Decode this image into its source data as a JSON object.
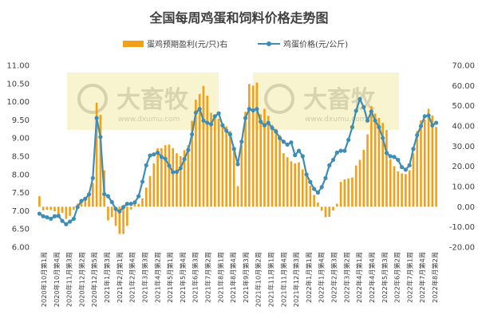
{
  "chart_data": {
    "type": "bar+line",
    "title": "全国每周鸡蛋和饲料价格走势图",
    "watermark": {
      "brand": "大畜牧",
      "url": "www.dxumu.com"
    },
    "colors": {
      "bar": "#f2a01a",
      "line": "#3d8db4",
      "marker_fill": "#3d8db4",
      "watermark_bg": "#f7f2c7"
    },
    "series": [
      {
        "name": "蛋鸡预期盈利(元/只)右",
        "type": "bar",
        "axis": "right"
      },
      {
        "name": "鸡蛋价格(元/公斤)",
        "type": "line",
        "axis": "left"
      }
    ],
    "left_axis": {
      "min": 6.0,
      "max": 11.0,
      "step": 0.5,
      "ticks": [
        "6.00",
        "6.50",
        "7.00",
        "7.50",
        "8.00",
        "8.50",
        "9.00",
        "9.50",
        "10.00",
        "10.50",
        "11.00"
      ]
    },
    "right_axis": {
      "min": -20,
      "max": 70,
      "step": 10,
      "ticks": [
        "-20.00",
        "-10.00",
        "0.00",
        "10.00",
        "20.00",
        "30.00",
        "40.00",
        "50.00",
        "60.00",
        "70.00"
      ]
    },
    "x_tick_labels": [
      "2020年10月第1周",
      "2020年10月第4周",
      "2020年11月第3周",
      "2020年12月第2周",
      "2020年12月第5周",
      "2021年1月第3周",
      "2021年2月第1周",
      "2021年2月第4周",
      "2021年3月第3周",
      "2021年4月第2周",
      "2021年5月第1周",
      "2021年5月第4周",
      "2021年6月第3周",
      "2021年7月第2周",
      "2021年8月第1周",
      "2021年8月第4周",
      "2021年9月第3周",
      "2021年10月第2周",
      "2021年11月第1周",
      "2021年11月第4周",
      "2021年12月第3周",
      "2022年1月第1周",
      "2022年1月第4周",
      "2022年2月第3周",
      "2022年3月第2周",
      "2022年4月第1周",
      "2022年4月第4周",
      "2022年5月第3周",
      "2022年6月第2周",
      "2022年7月第1周",
      "2022年7月第4周",
      "2022年8月第2周"
    ],
    "egg_price": [
      6.92,
      6.85,
      6.82,
      6.78,
      6.85,
      6.86,
      6.72,
      6.63,
      6.7,
      6.78,
      7.1,
      7.27,
      7.33,
      7.45,
      7.9,
      9.55,
      9.03,
      7.46,
      7.4,
      7.24,
      7.05,
      6.98,
      7.1,
      7.19,
      7.19,
      7.23,
      7.4,
      7.8,
      8.25,
      8.52,
      8.55,
      8.6,
      8.48,
      8.43,
      8.24,
      8.06,
      8.07,
      8.17,
      8.42,
      8.67,
      9.1,
      9.7,
      9.8,
      9.48,
      9.42,
      9.38,
      9.6,
      9.68,
      9.35,
      9.2,
      9.1,
      8.7,
      8.28,
      8.9,
      9.55,
      9.8,
      9.76,
      9.8,
      9.45,
      9.35,
      9.42,
      9.28,
      9.18,
      9.0,
      8.9,
      8.82,
      8.88,
      8.53,
      8.65,
      8.5,
      8.0,
      7.79,
      7.6,
      7.5,
      7.65,
      7.9,
      8.25,
      8.4,
      8.6,
      8.65,
      8.65,
      8.95,
      9.3,
      9.75,
      10.07,
      9.85,
      9.48,
      9.73,
      9.48,
      9.3,
      9.0,
      8.59,
      8.5,
      8.48,
      8.4,
      8.2,
      8.13,
      8.25,
      8.7,
      9.08,
      9.33,
      9.6,
      9.62,
      9.35,
      9.42
    ],
    "profit": [
      5.2,
      -1.8,
      -1.5,
      -1.6,
      -2.3,
      -4.5,
      -3.0,
      -6.0,
      -4.5,
      -1.6,
      1.5,
      3.8,
      3.0,
      5.8,
      11.8,
      51.5,
      45.5,
      18.0,
      -6.8,
      -5.2,
      -9.5,
      -13.5,
      -13.5,
      -9.5,
      -1.4,
      1.3,
      1.4,
      4.2,
      9.5,
      15.2,
      21.5,
      28.9,
      29.0,
      30.5,
      30.8,
      29.0,
      26.5,
      25.0,
      28.0,
      30.5,
      42.5,
      53.0,
      55.8,
      59.8,
      55.0,
      46.5,
      45.5,
      43.5,
      41.0,
      39.8,
      37.5,
      27.5,
      10.2,
      30.5,
      47.0,
      60.8,
      60.0,
      61.5,
      45.8,
      48.5,
      45.0,
      40.5,
      38.5,
      35.5,
      26.5,
      24.5,
      22.5,
      21.5,
      22.0,
      18.5,
      15.2,
      10.5,
      5.8,
      2.1,
      -2.0,
      -5.2,
      -5.0,
      -1.9,
      1.5,
      12.3,
      13.5,
      14.0,
      14.5,
      20.4,
      23.2,
      28.2,
      35.8,
      49.8,
      46.2,
      44.0,
      41.5,
      38.0,
      23.5,
      20.1,
      17.5,
      16.5,
      16.2,
      18.1,
      26.5,
      37.5,
      42.8,
      43.2,
      48.5,
      45.2,
      39.5
    ]
  }
}
